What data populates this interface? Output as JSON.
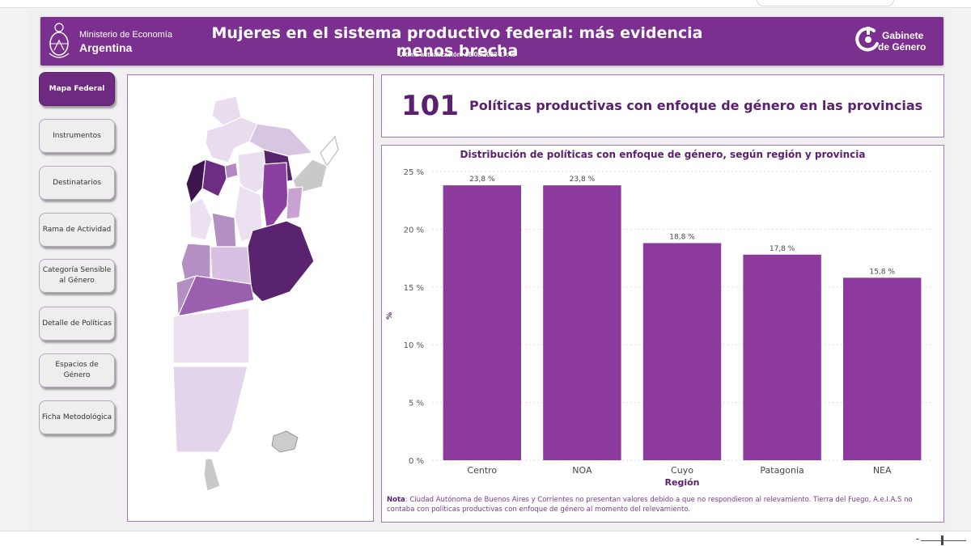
{
  "header": {
    "ministry_line1": "Ministerio de Economía",
    "ministry_line2": "Argentina",
    "title": "Mujeres en el sistema productivo federal: más evidencia menos brecha",
    "updated": "Ultima actualización: 08/08/2023 17:45",
    "brand_line1": "Gabinete",
    "brand_line2": "de Género"
  },
  "nav": [
    {
      "label": "Mapa Federal",
      "active": true
    },
    {
      "label": "Instrumentos"
    },
    {
      "label": "Destinatarios"
    },
    {
      "label": "Rama de Actividad"
    },
    {
      "label": "Categoría Sensible al Género"
    },
    {
      "label": "Detalle de Políticas"
    },
    {
      "label": "Espacios de Género"
    },
    {
      "label": "Ficha Metodológica"
    }
  ],
  "kpi": {
    "value": "101",
    "label": "Políticas productivas con enfoque de género en las provincias"
  },
  "chart": {
    "title": "Distribución de políticas con enfoque de género, según región y provincia",
    "note_label": "Nota",
    "note_text": ": Ciudad Autónoma de Buenos Aires y Corrientes no presentan valores debido a que no respondieron al relevamiento. Tierra del Fuego, A.e.I.A.S no contaba con políticas productivas con enfoque de género al momento del relevamiento."
  },
  "chart_data": {
    "type": "bar",
    "categories": [
      "Centro",
      "NOA",
      "Cuyo",
      "Patagonia",
      "NEA"
    ],
    "values": [
      23.8,
      23.8,
      18.8,
      17.8,
      15.8
    ],
    "data_labels": [
      "23,8 %",
      "23,8 %",
      "18,8 %",
      "17,8 %",
      "15,8 %"
    ],
    "yticks": [
      0,
      5,
      10,
      15,
      20,
      25
    ],
    "ytick_labels": [
      "0 %",
      "5 %",
      "10 %",
      "15 %",
      "20 %",
      "25 %"
    ],
    "ylim": [
      0,
      25
    ],
    "xlabel": "Región",
    "ylabel": "%",
    "grid": true,
    "bar_color": "#8d3a9e"
  },
  "colors": {
    "header_bg": "#7b2f8e",
    "accent": "#5c2070",
    "bar": "#8d3a9e"
  },
  "icons": {
    "ministry": "argentina-coat-of-arms",
    "brand": "gabinete-genero-logo"
  }
}
